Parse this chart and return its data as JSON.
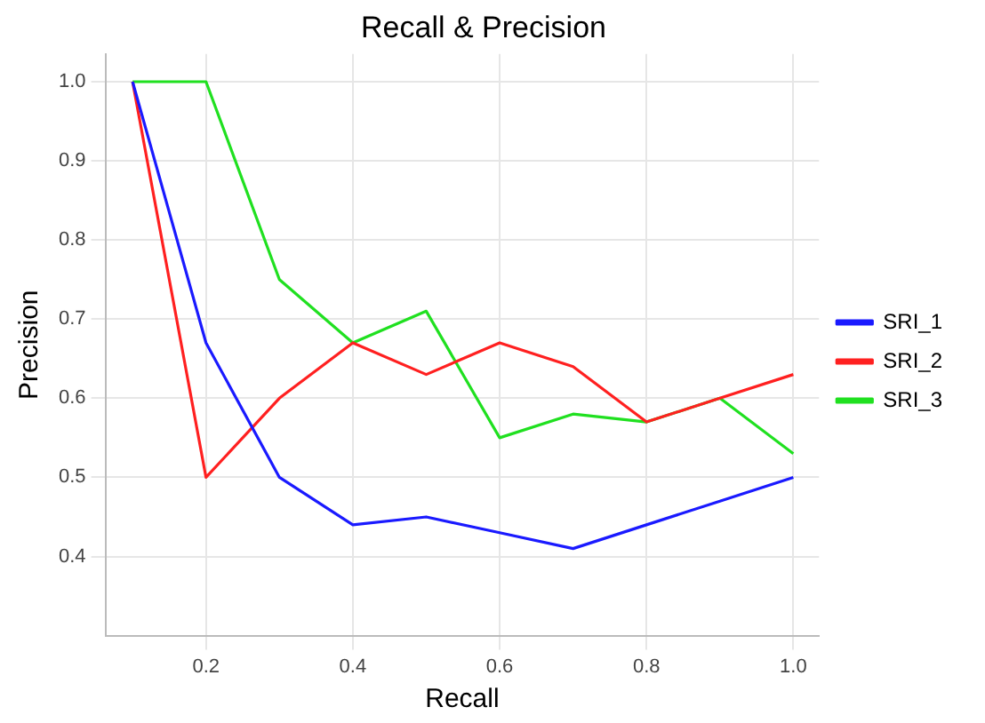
{
  "chart_data": {
    "type": "line",
    "title": "Recall & Precision",
    "xlabel": "Recall",
    "ylabel": "Precision",
    "x": [
      0.1,
      0.2,
      0.3,
      0.4,
      0.5,
      0.6,
      0.7,
      0.8,
      0.9,
      1.0
    ],
    "series": [
      {
        "name": "SRI_1",
        "color": "#1a1aff",
        "values": [
          1.0,
          0.67,
          0.5,
          0.44,
          0.45,
          0.43,
          0.41,
          0.44,
          0.47,
          0.5
        ]
      },
      {
        "name": "SRI_2",
        "color": "#ff2020",
        "values": [
          1.0,
          0.5,
          0.6,
          0.67,
          0.63,
          0.67,
          0.64,
          0.57,
          0.6,
          0.63
        ]
      },
      {
        "name": "SRI_3",
        "color": "#20e020",
        "values": [
          1.0,
          1.0,
          0.75,
          0.67,
          0.71,
          0.55,
          0.58,
          0.57,
          0.6,
          0.53
        ]
      }
    ],
    "xlim": [
      0.063,
      1.035
    ],
    "ylim": [
      0.3,
      1.035
    ],
    "xticks": [
      {
        "value": 0.2,
        "label": "0.2"
      },
      {
        "value": 0.4,
        "label": "0.4"
      },
      {
        "value": 0.6,
        "label": "0.6"
      },
      {
        "value": 0.8,
        "label": "0.8"
      },
      {
        "value": 1.0,
        "label": "1.0"
      }
    ],
    "yticks": [
      {
        "value": 0.4,
        "label": "0.4"
      },
      {
        "value": 0.5,
        "label": "0.5"
      },
      {
        "value": 0.6,
        "label": "0.6"
      },
      {
        "value": 0.7,
        "label": "0.7"
      },
      {
        "value": 0.8,
        "label": "0.8"
      },
      {
        "value": 0.9,
        "label": "0.9"
      },
      {
        "value": 1.0,
        "label": "1.0"
      }
    ],
    "grid": true,
    "legend": "right",
    "marker": "none",
    "line_style": "solid"
  }
}
